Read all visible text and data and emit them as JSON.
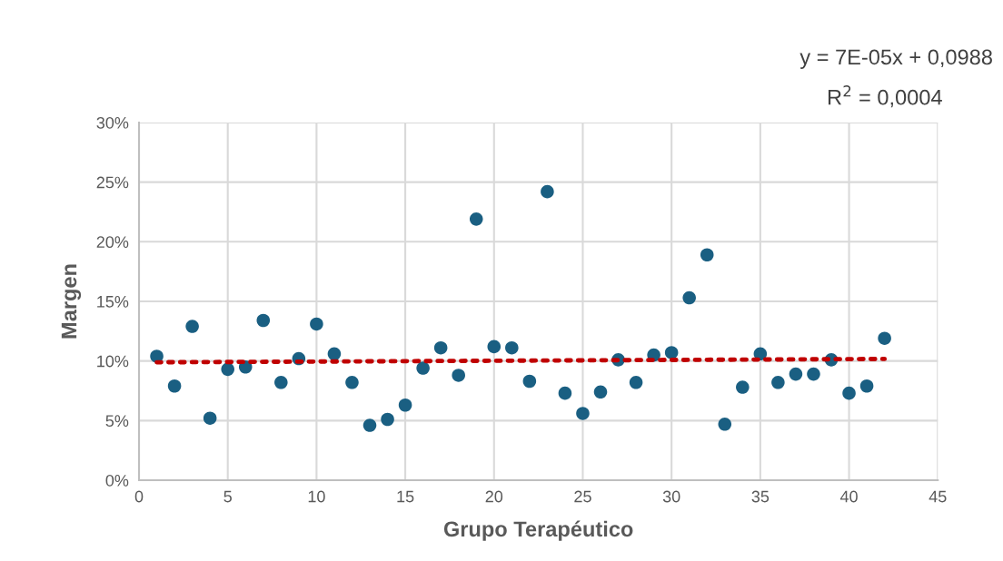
{
  "chart_data": {
    "type": "scatter",
    "xlabel": "Grupo Terapéutico",
    "ylabel": "Margen",
    "annotations": [
      "y = 7E-05x + 0,0988",
      "R$^{2}$ = 0,0004"
    ],
    "x": [
      1,
      2,
      3,
      4,
      5,
      6,
      7,
      8,
      9,
      10,
      11,
      12,
      13,
      14,
      15,
      16,
      17,
      18,
      19,
      20,
      21,
      22,
      23,
      24,
      25,
      26,
      27,
      28,
      29,
      30,
      31,
      32,
      33,
      34,
      35,
      36,
      37,
      38,
      39,
      40,
      41,
      42
    ],
    "series": [
      {
        "color": "#1a5f82",
        "marker": "circle",
        "values": [
          10.4,
          7.9,
          12.9,
          5.2,
          9.3,
          9.5,
          13.4,
          8.2,
          10.2,
          13.1,
          10.6,
          8.2,
          4.6,
          5.1,
          6.3,
          9.4,
          11.1,
          8.8,
          21.9,
          11.2,
          11.1,
          8.3,
          24.2,
          7.3,
          5.6,
          7.4,
          10.1,
          8.2,
          10.5,
          10.7,
          15.3,
          18.9,
          4.7,
          7.8,
          10.6,
          8.2,
          8.9,
          8.9,
          10.1,
          7.3,
          7.9,
          11.9
        ]
      },
      {
        "type": "line",
        "color": "#c00000",
        "line_style": "dotted",
        "x": [
          1,
          42
        ],
        "values": [
          9.89,
          10.17
        ]
      }
    ],
    "xlim": [
      0,
      45
    ],
    "xticks": [
      0,
      5,
      10,
      15,
      20,
      25,
      30,
      35,
      40,
      45
    ],
    "ylim": [
      0,
      30
    ],
    "yticks": [
      {
        "value": 0,
        "label": "0%"
      },
      {
        "value": 5,
        "label": "5%"
      },
      {
        "value": 10,
        "label": "10%"
      },
      {
        "value": 15,
        "label": "15%"
      },
      {
        "value": 20,
        "label": "20%"
      },
      {
        "value": 25,
        "label": "25%"
      },
      {
        "value": 30,
        "label": "30%"
      }
    ],
    "grid": true
  }
}
